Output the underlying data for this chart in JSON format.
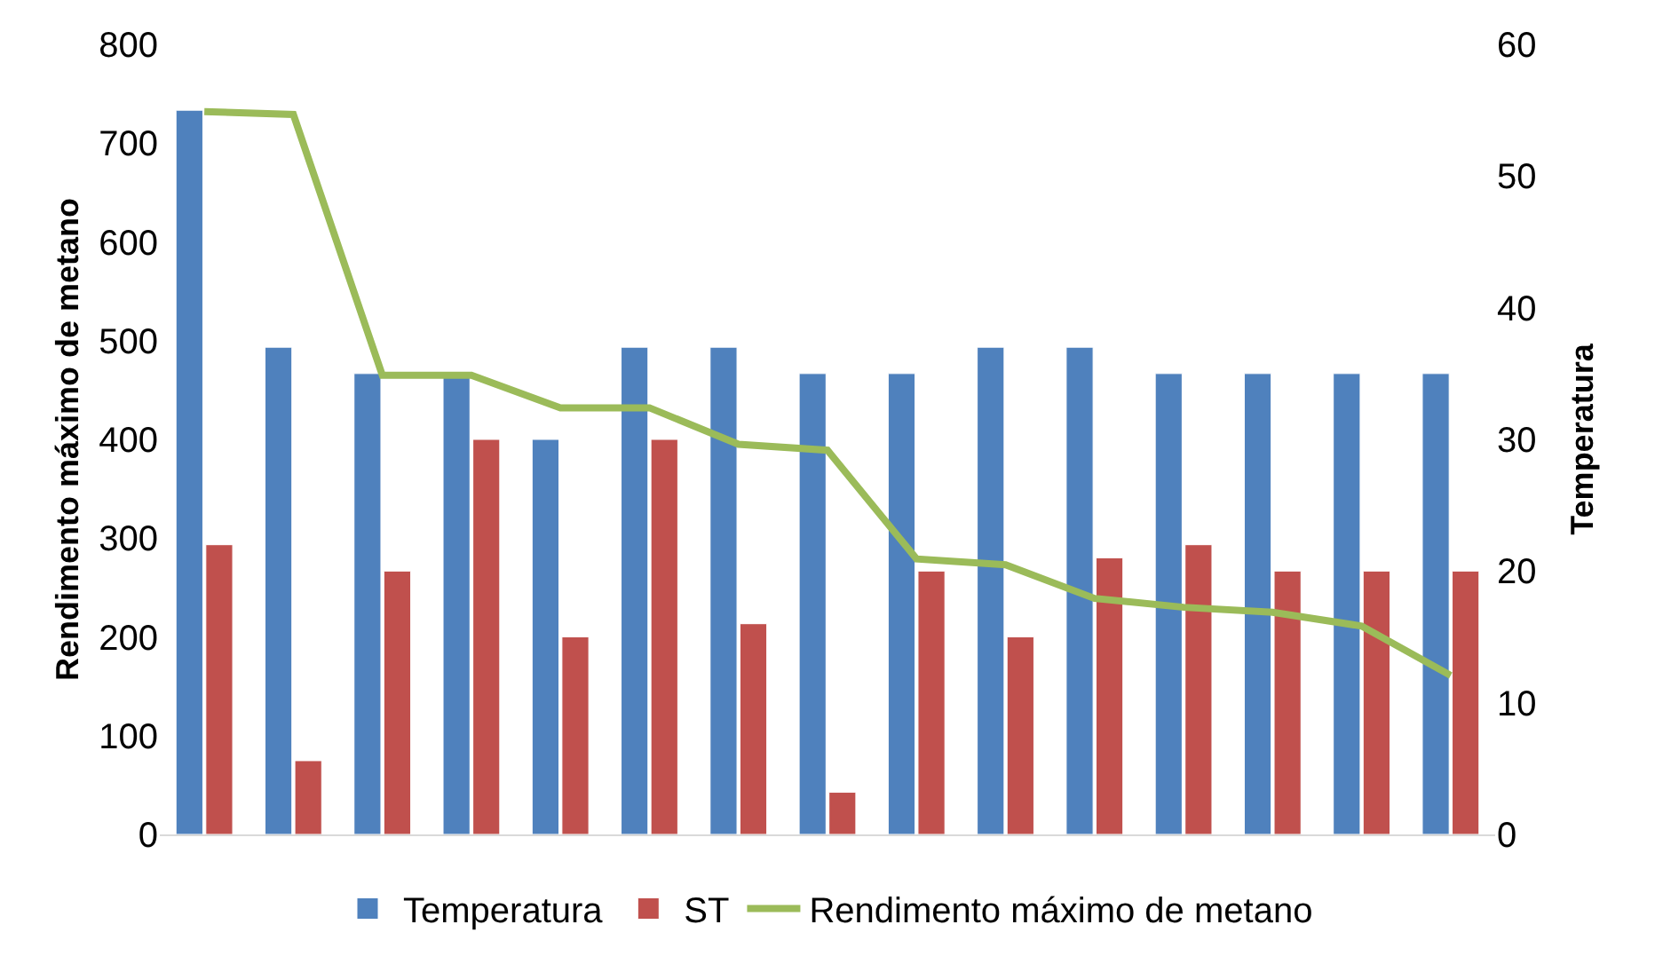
{
  "chart_data": {
    "type": "bar",
    "ylabel": "Rendimento máximo de metano",
    "y2label": "Temperatura",
    "categories": [
      null,
      null,
      null,
      null,
      null,
      null,
      null,
      null,
      null,
      null,
      null,
      null,
      null,
      null,
      null
    ],
    "series": [
      {
        "name": "Temperatura",
        "color": "#4f81bd",
        "axis": "y2",
        "values": [
          55,
          37,
          35,
          35,
          30,
          37,
          37,
          35,
          35,
          37,
          37,
          35,
          35,
          35,
          35
        ]
      },
      {
        "name": "ST",
        "color": "#c0504d",
        "axis": "y2",
        "values": [
          22,
          5.6,
          20,
          30,
          15,
          30,
          16,
          3.2,
          20,
          15,
          21,
          22,
          20,
          20,
          20
        ]
      },
      {
        "name": "Rendimento máximo de metano",
        "type": "line",
        "color": "#9bbb59",
        "axis": "y",
        "values": [
          732,
          729,
          465,
          465,
          432,
          432,
          395,
          389,
          279,
          273,
          239,
          230,
          225,
          211,
          161
        ]
      }
    ],
    "ylim": [
      0,
      800
    ],
    "yticks": [
      0,
      100,
      200,
      300,
      400,
      500,
      600,
      700,
      800
    ],
    "y2lim": [
      0,
      60
    ],
    "y2ticks": [
      0,
      10,
      20,
      30,
      40,
      50,
      60
    ],
    "grid": false,
    "legend": "bottom",
    "marker": "none"
  }
}
